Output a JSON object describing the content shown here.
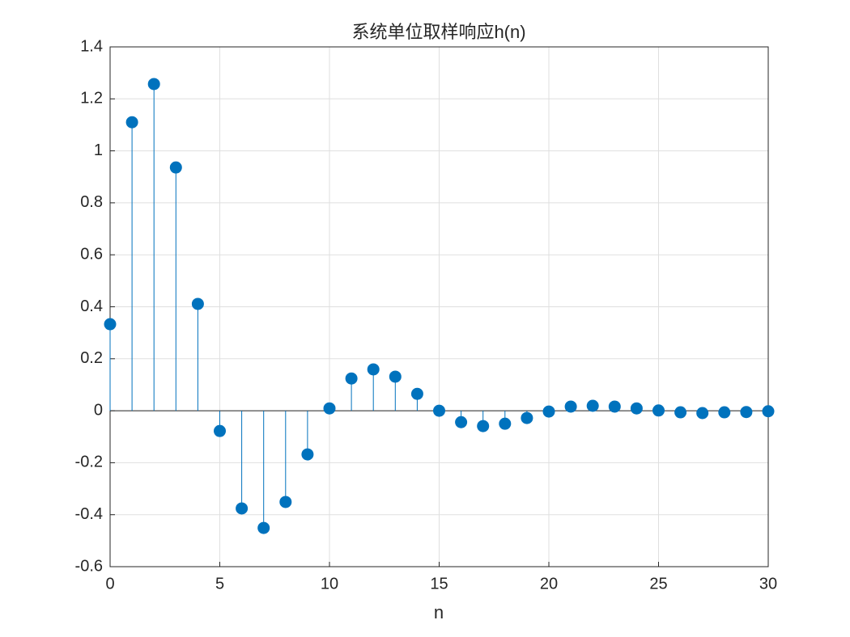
{
  "chart_data": {
    "type": "stem",
    "title": "系统单位取样响应h(n)",
    "xlabel": "n",
    "x": [
      0,
      1,
      2,
      3,
      4,
      5,
      6,
      7,
      8,
      9,
      10,
      11,
      12,
      13,
      14,
      15,
      16,
      17,
      18,
      19,
      20,
      21,
      22,
      23,
      24,
      25,
      26,
      27,
      28,
      29,
      30
    ],
    "series": [
      {
        "color": "#0072bd",
        "values": [
          0.333,
          1.11,
          1.257,
          0.936,
          0.411,
          -0.078,
          -0.376,
          -0.451,
          -0.351,
          -0.168,
          0.009,
          0.124,
          0.159,
          0.131,
          0.065,
          0.0,
          -0.044,
          -0.059,
          -0.05,
          -0.028,
          -0.003,
          0.016,
          0.019,
          0.016,
          0.009,
          0.001,
          -0.006,
          -0.009,
          -0.006,
          -0.005,
          -0.002
        ]
      }
    ],
    "xlim": [
      0,
      30
    ],
    "xticks": [
      0,
      5,
      10,
      15,
      20,
      25,
      30
    ],
    "ylim": [
      -0.6,
      1.4
    ],
    "yticks": [
      -0.6,
      -0.4,
      -0.2,
      0,
      0.2,
      0.4,
      0.6,
      0.8,
      1,
      1.2,
      1.4
    ],
    "grid": true
  }
}
